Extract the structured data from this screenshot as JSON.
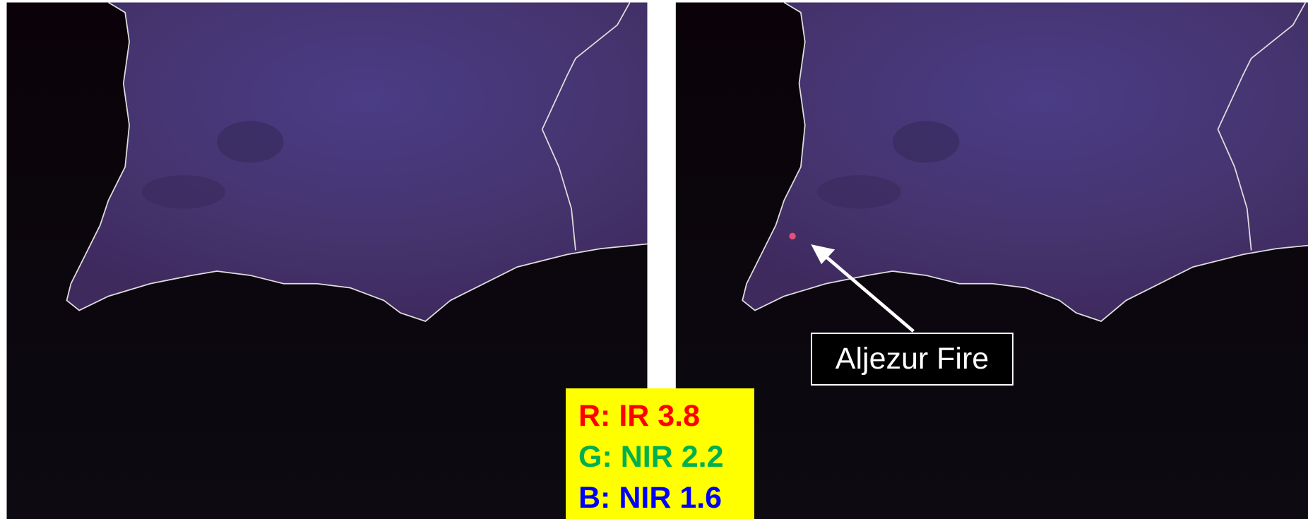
{
  "annotation": {
    "label": "Aljezur Fire"
  },
  "legend": {
    "lines": [
      "R: IR 3.8",
      "G: NIR 2.2",
      "B: NIR 1.6"
    ]
  }
}
